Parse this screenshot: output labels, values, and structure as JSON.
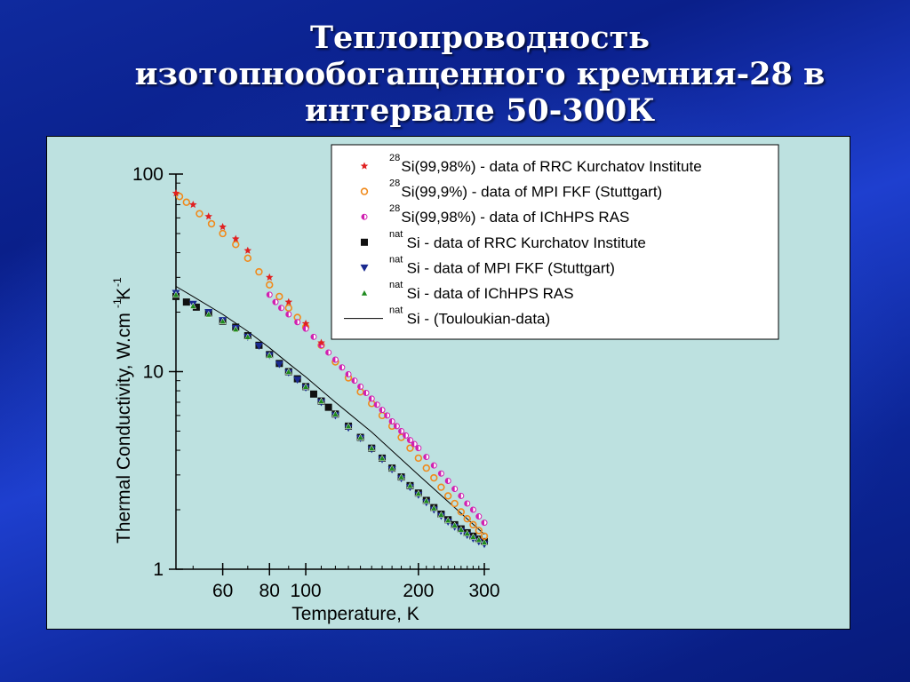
{
  "slide": {
    "title_lines": [
      "Теплопроводность",
      "изотопнообогащенного кремния-28 в",
      "интервале 50-300К"
    ]
  },
  "colors": {
    "background": "#0f2a9e",
    "panel": "#bde1e0",
    "si28_kurchatov": "#e02020",
    "si28_mpi": "#f08a1c",
    "si28_ichhps": "#d020b0",
    "nat_kurchatov": "#111111",
    "nat_mpi": "#1a2a90",
    "nat_ichhps": "#1e8a1e"
  },
  "chart_data": {
    "type": "scatter",
    "xscale": "log",
    "yscale": "log",
    "xlabel": "Temperature, K",
    "ylabel_main": "Thermal Conductivity, W.cm",
    "ylabel_sup1": "-1",
    "ylabel_mid": "K",
    "ylabel_sup2": "-1",
    "xlim": [
      45,
      310
    ],
    "ylim": [
      1,
      100
    ],
    "x_ticks": [
      {
        "value": 60,
        "label": "60"
      },
      {
        "value": 80,
        "label": "80"
      },
      {
        "value": 100,
        "label": "100"
      },
      {
        "value": 200,
        "label": "200"
      },
      {
        "value": 300,
        "label": "300"
      }
    ],
    "y_ticks": [
      {
        "value": 1,
        "label": "1"
      },
      {
        "value": 10,
        "label": "10"
      },
      {
        "value": 100,
        "label": "100"
      }
    ],
    "legend_position": "top-right",
    "series": [
      {
        "id": "si28_kurchatov",
        "marker": "star",
        "color": "#e02020",
        "label_sup": "28",
        "label_text": "Si(99,98%) - data of RRC Kurchatov Institute",
        "x": [
          45,
          50,
          55,
          60,
          65,
          70,
          80,
          90,
          100,
          110
        ],
        "y": [
          80,
          70,
          61,
          54,
          47,
          41,
          30,
          22.5,
          17.5,
          14
        ]
      },
      {
        "id": "si28_mpi",
        "marker": "circle-open",
        "color": "#f08a1c",
        "label_sup": "28",
        "label_text": "Si(99,9%)  - data of MPI FKF (Stuttgart)",
        "x": [
          46,
          48,
          52,
          56,
          60,
          65,
          70,
          75,
          80,
          85,
          90,
          95,
          100,
          110,
          120,
          130,
          140,
          150,
          160,
          170,
          180,
          190,
          200,
          210,
          220,
          230,
          240,
          250,
          260,
          270,
          280,
          290,
          300
        ],
        "y": [
          77,
          72,
          63,
          56,
          50,
          44,
          37.5,
          32,
          27.5,
          24,
          21,
          18.8,
          16.8,
          13.6,
          11.2,
          9.3,
          7.9,
          6.9,
          6.0,
          5.3,
          4.65,
          4.1,
          3.65,
          3.25,
          2.9,
          2.6,
          2.35,
          2.15,
          1.95,
          1.8,
          1.68,
          1.57,
          1.47
        ]
      },
      {
        "id": "si28_ichhps",
        "marker": "circle-half",
        "color": "#d020b0",
        "label_sup": "28",
        "label_text": "Si(99,98%) - data of IChHPS RAS",
        "x": [
          80,
          83,
          86,
          90,
          95,
          100,
          105,
          110,
          115,
          120,
          125,
          130,
          135,
          140,
          145,
          150,
          155,
          160,
          165,
          170,
          175,
          180,
          185,
          190,
          195,
          200,
          210,
          220,
          230,
          240,
          250,
          260,
          270,
          280,
          290,
          300
        ],
        "y": [
          24.5,
          22.5,
          21,
          19.5,
          17.8,
          16.5,
          15,
          13.6,
          12.5,
          11.5,
          10.5,
          9.7,
          9.0,
          8.4,
          7.8,
          7.3,
          6.8,
          6.4,
          6.0,
          5.6,
          5.3,
          5.0,
          4.75,
          4.5,
          4.3,
          4.1,
          3.7,
          3.35,
          3.05,
          2.8,
          2.55,
          2.35,
          2.15,
          2.0,
          1.85,
          1.72
        ]
      },
      {
        "id": "nat_kurchatov",
        "marker": "square",
        "color": "#111111",
        "label_sup": "nat",
        "label_text": "Si - data of RRC Kurchatov Institute",
        "x": [
          45,
          48,
          51,
          55,
          60,
          65,
          70,
          75,
          80,
          85,
          90,
          95,
          100,
          105,
          110,
          115,
          120,
          130,
          140,
          150,
          160,
          170,
          180,
          190,
          200,
          210,
          220,
          230,
          240,
          250,
          260,
          270,
          280,
          290,
          300
        ],
        "y": [
          24,
          22.5,
          21.2,
          19.8,
          18,
          16.8,
          15.2,
          13.6,
          12.2,
          11,
          10,
          9.2,
          8.4,
          7.7,
          7.1,
          6.6,
          6.1,
          5.3,
          4.65,
          4.1,
          3.65,
          3.25,
          2.93,
          2.65,
          2.43,
          2.23,
          2.05,
          1.9,
          1.78,
          1.68,
          1.6,
          1.53,
          1.47,
          1.42,
          1.38
        ]
      },
      {
        "id": "nat_mpi",
        "marker": "triangle-down",
        "color": "#1a2a90",
        "label_sup": "nat",
        "label_text": "Si - data of MPI FKF (Stuttgart)",
        "x": [
          45,
          50,
          55,
          60,
          65,
          70,
          75,
          80,
          85,
          90,
          95,
          100,
          110,
          120,
          130,
          140,
          150,
          160,
          170,
          180,
          190,
          200,
          210,
          220,
          230,
          240,
          250,
          260,
          270,
          280,
          290,
          300
        ],
        "y": [
          25,
          22,
          20,
          18.2,
          16.6,
          15,
          13.5,
          12.1,
          10.9,
          9.9,
          9.1,
          8.3,
          7.0,
          6.0,
          5.2,
          4.6,
          4.05,
          3.6,
          3.2,
          2.88,
          2.6,
          2.38,
          2.18,
          2.0,
          1.86,
          1.74,
          1.64,
          1.56,
          1.49,
          1.43,
          1.38,
          1.34
        ]
      },
      {
        "id": "nat_ichhps",
        "marker": "triangle-up",
        "color": "#1e8a1e",
        "label_sup": "nat",
        "label_text": "Si - data of IChHPS RAS",
        "x": [
          45,
          50,
          55,
          60,
          65,
          70,
          80,
          90,
          100,
          110,
          120,
          130,
          140,
          150,
          160,
          170,
          180,
          190,
          200,
          210,
          220,
          230,
          240,
          250,
          260,
          270,
          280,
          290,
          300
        ],
        "y": [
          24.5,
          21.5,
          19.5,
          18,
          16.4,
          15,
          12.1,
          10,
          8.4,
          7.1,
          6.1,
          5.3,
          4.65,
          4.1,
          3.65,
          3.25,
          2.93,
          2.65,
          2.42,
          2.22,
          2.04,
          1.89,
          1.77,
          1.67,
          1.59,
          1.52,
          1.46,
          1.41,
          1.37
        ]
      },
      {
        "id": "nat_touloukian",
        "marker": "line",
        "color": "#000000",
        "label_sup": "nat",
        "label_text": "Si - (Touloukian-data)",
        "x": [
          45,
          50,
          60,
          70,
          80,
          90,
          100,
          120,
          150,
          200,
          250,
          300
        ],
        "y": [
          27,
          24,
          19.5,
          16,
          13.2,
          11,
          9.4,
          7.0,
          4.95,
          3.0,
          2.05,
          1.5
        ]
      }
    ]
  }
}
